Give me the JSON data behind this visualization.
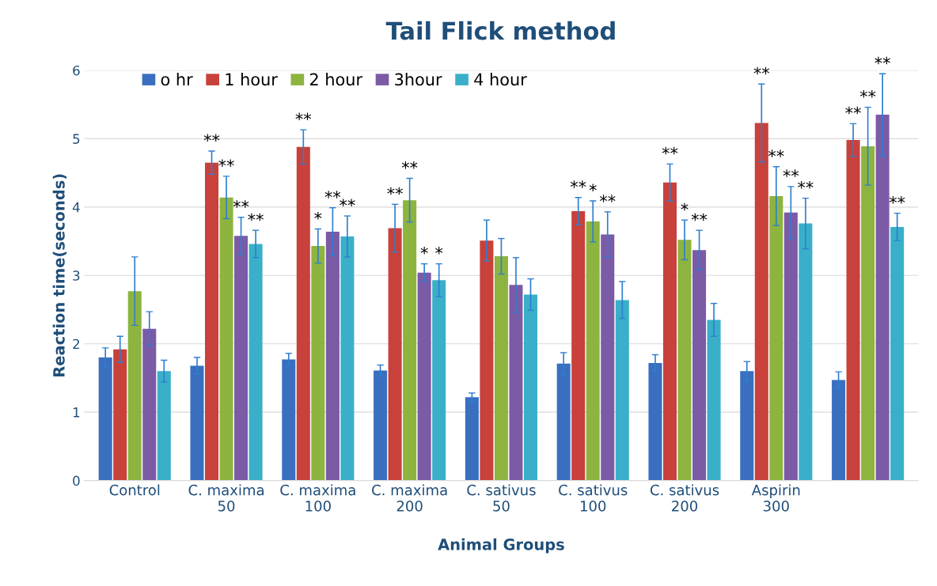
{
  "chart_data": {
    "type": "bar",
    "title": "Tail Flick method",
    "xlabel": "Animal Groups",
    "ylabel": "Reaction time(seconds)",
    "categories": [
      "Control",
      "C. maxima\n50",
      "C. maxima\n100",
      "C. maxima\n200",
      "C. sativus\n50",
      "C. sativus\n100",
      "C. sativus\n200",
      "Aspirin\n300",
      null
    ],
    "series": [
      {
        "name": "o hr",
        "color": "#3a6fc0",
        "values": [
          1.8,
          1.68,
          1.77,
          1.61,
          1.22,
          1.71,
          1.72,
          1.6,
          1.47
        ],
        "errors": [
          0.14,
          0.12,
          0.09,
          0.08,
          0.06,
          0.16,
          0.12,
          0.14,
          0.12
        ],
        "value_labels": [
          null,
          null,
          null,
          null,
          null,
          null,
          null,
          null,
          null
        ]
      },
      {
        "name": "1 hour",
        "color": "#c8413b",
        "values": [
          1.92,
          4.65,
          4.88,
          3.69,
          3.51,
          3.94,
          4.36,
          5.23,
          4.98
        ],
        "errors": [
          0.19,
          0.17,
          0.25,
          0.35,
          0.3,
          0.2,
          0.27,
          0.57,
          0.24
        ],
        "value_labels": [
          null,
          "**",
          "**",
          "**",
          null,
          "**",
          "**",
          "**",
          "**"
        ]
      },
      {
        "name": "2 hour",
        "color": "#8db43e",
        "values": [
          2.77,
          4.14,
          3.43,
          4.1,
          3.28,
          3.79,
          3.52,
          4.16,
          4.89
        ],
        "errors": [
          0.5,
          0.31,
          0.25,
          0.32,
          0.26,
          0.3,
          0.29,
          0.43,
          0.57
        ],
        "value_labels": [
          null,
          "**",
          "*",
          "**",
          null,
          "*",
          "*",
          "**",
          "**"
        ]
      },
      {
        "name": "3hour",
        "color": "#7b5aa6",
        "values": [
          2.22,
          3.58,
          3.64,
          3.04,
          2.86,
          3.6,
          3.37,
          3.92,
          5.35
        ],
        "errors": [
          0.25,
          0.27,
          0.35,
          0.13,
          0.4,
          0.33,
          0.29,
          0.38,
          0.6
        ],
        "value_labels": [
          null,
          "**",
          "**",
          "*",
          null,
          "**",
          "**",
          "**",
          "**"
        ]
      },
      {
        "name": "4 hour",
        "color": "#3aafc9",
        "values": [
          1.6,
          3.46,
          3.57,
          2.93,
          2.72,
          2.64,
          2.35,
          3.76,
          3.71
        ],
        "errors": [
          0.16,
          0.2,
          0.3,
          0.24,
          0.23,
          0.27,
          0.24,
          0.37,
          0.2
        ],
        "value_labels": [
          null,
          "**",
          "**",
          "*",
          null,
          null,
          null,
          "**",
          "**"
        ]
      }
    ],
    "ylim": [
      0,
      6
    ],
    "yticks": [
      0,
      1,
      2,
      3,
      4,
      5,
      6
    ],
    "grid": "y",
    "legend": "top"
  }
}
